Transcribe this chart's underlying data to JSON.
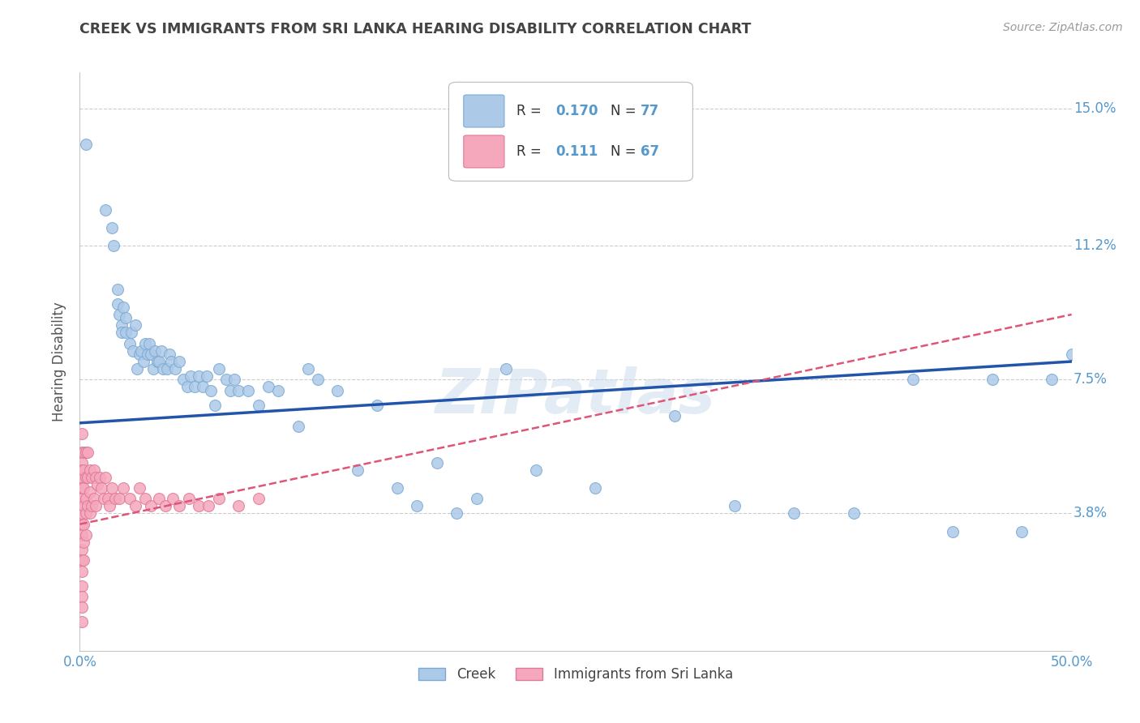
{
  "title": "CREEK VS IMMIGRANTS FROM SRI LANKA HEARING DISABILITY CORRELATION CHART",
  "source": "Source: ZipAtlas.com",
  "ylabel": "Hearing Disability",
  "xlim": [
    0.0,
    0.5
  ],
  "ylim": [
    0.0,
    0.16
  ],
  "xticks": [
    0.0,
    0.1,
    0.2,
    0.3,
    0.4,
    0.5
  ],
  "xticklabels": [
    "0.0%",
    "",
    "",
    "",
    "",
    "50.0%"
  ],
  "yticks": [
    0.038,
    0.075,
    0.112,
    0.15
  ],
  "yticklabels": [
    "3.8%",
    "7.5%",
    "11.2%",
    "15.0%"
  ],
  "creek_color": "#adc9e8",
  "creek_edge": "#7aaad4",
  "srilanka_color": "#f5a8bc",
  "srilanka_edge": "#e07898",
  "creek_line_color": "#2255aa",
  "srilanka_line_color": "#dd5577",
  "watermark": "ZIPatlas",
  "background_color": "#ffffff",
  "grid_color": "#cccccc",
  "title_color": "#444444",
  "axis_label_color": "#555555",
  "tick_label_color": "#5599cc",
  "creek_x": [
    0.003,
    0.013,
    0.016,
    0.017,
    0.019,
    0.019,
    0.02,
    0.021,
    0.021,
    0.022,
    0.023,
    0.023,
    0.025,
    0.026,
    0.027,
    0.028,
    0.029,
    0.03,
    0.031,
    0.032,
    0.033,
    0.034,
    0.035,
    0.036,
    0.037,
    0.038,
    0.039,
    0.04,
    0.041,
    0.042,
    0.044,
    0.045,
    0.046,
    0.048,
    0.05,
    0.052,
    0.054,
    0.056,
    0.058,
    0.06,
    0.062,
    0.064,
    0.066,
    0.068,
    0.07,
    0.074,
    0.076,
    0.078,
    0.08,
    0.085,
    0.09,
    0.095,
    0.1,
    0.11,
    0.115,
    0.12,
    0.13,
    0.14,
    0.15,
    0.16,
    0.17,
    0.18,
    0.19,
    0.2,
    0.215,
    0.23,
    0.26,
    0.3,
    0.33,
    0.36,
    0.39,
    0.42,
    0.44,
    0.46,
    0.475,
    0.49,
    0.5
  ],
  "creek_y": [
    0.14,
    0.122,
    0.117,
    0.112,
    0.1,
    0.096,
    0.093,
    0.09,
    0.088,
    0.095,
    0.092,
    0.088,
    0.085,
    0.088,
    0.083,
    0.09,
    0.078,
    0.082,
    0.083,
    0.08,
    0.085,
    0.082,
    0.085,
    0.082,
    0.078,
    0.083,
    0.08,
    0.08,
    0.083,
    0.078,
    0.078,
    0.082,
    0.08,
    0.078,
    0.08,
    0.075,
    0.073,
    0.076,
    0.073,
    0.076,
    0.073,
    0.076,
    0.072,
    0.068,
    0.078,
    0.075,
    0.072,
    0.075,
    0.072,
    0.072,
    0.068,
    0.073,
    0.072,
    0.062,
    0.078,
    0.075,
    0.072,
    0.05,
    0.068,
    0.045,
    0.04,
    0.052,
    0.038,
    0.042,
    0.078,
    0.05,
    0.045,
    0.065,
    0.04,
    0.038,
    0.038,
    0.075,
    0.033,
    0.075,
    0.033,
    0.075,
    0.082
  ],
  "srilanka_x": [
    0.001,
    0.001,
    0.001,
    0.001,
    0.001,
    0.001,
    0.001,
    0.001,
    0.001,
    0.001,
    0.001,
    0.001,
    0.001,
    0.001,
    0.001,
    0.001,
    0.001,
    0.002,
    0.002,
    0.002,
    0.002,
    0.002,
    0.002,
    0.002,
    0.003,
    0.003,
    0.003,
    0.003,
    0.003,
    0.004,
    0.004,
    0.004,
    0.005,
    0.005,
    0.005,
    0.006,
    0.006,
    0.007,
    0.007,
    0.008,
    0.008,
    0.009,
    0.01,
    0.011,
    0.012,
    0.013,
    0.014,
    0.015,
    0.016,
    0.018,
    0.02,
    0.022,
    0.025,
    0.028,
    0.03,
    0.033,
    0.036,
    0.04,
    0.043,
    0.047,
    0.05,
    0.055,
    0.06,
    0.065,
    0.07,
    0.08,
    0.09
  ],
  "srilanka_y": [
    0.06,
    0.055,
    0.052,
    0.05,
    0.048,
    0.045,
    0.042,
    0.038,
    0.035,
    0.032,
    0.028,
    0.025,
    0.022,
    0.018,
    0.015,
    0.012,
    0.008,
    0.055,
    0.05,
    0.045,
    0.04,
    0.035,
    0.03,
    0.025,
    0.055,
    0.048,
    0.042,
    0.038,
    0.032,
    0.055,
    0.048,
    0.04,
    0.05,
    0.044,
    0.038,
    0.048,
    0.04,
    0.05,
    0.042,
    0.048,
    0.04,
    0.046,
    0.048,
    0.045,
    0.042,
    0.048,
    0.042,
    0.04,
    0.045,
    0.042,
    0.042,
    0.045,
    0.042,
    0.04,
    0.045,
    0.042,
    0.04,
    0.042,
    0.04,
    0.042,
    0.04,
    0.042,
    0.04,
    0.04,
    0.042,
    0.04,
    0.042
  ],
  "creek_trend_x0": 0.0,
  "creek_trend_x1": 0.5,
  "creek_trend_y0": 0.063,
  "creek_trend_y1": 0.08,
  "srilanka_trend_x0": 0.0,
  "srilanka_trend_x1": 0.5,
  "srilanka_trend_y0": 0.035,
  "srilanka_trend_y1": 0.093
}
